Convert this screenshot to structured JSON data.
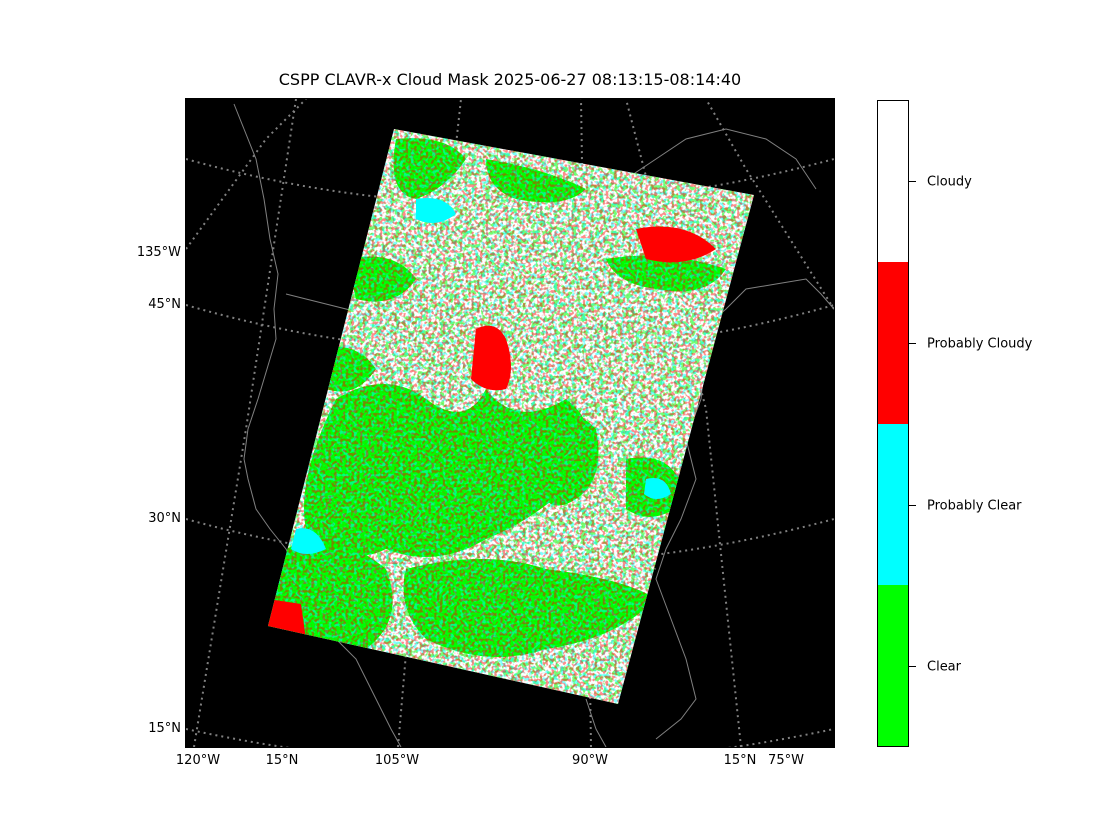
{
  "title": "CSPP CLAVR-x Cloud Mask 2025-06-27 08:13:15-08:14:40",
  "axis_labels": {
    "left": [
      "135°W",
      "45°N",
      "30°N",
      "15°N"
    ],
    "bottom": [
      "120°W",
      "15°N",
      "105°W",
      "90°W",
      "15°N",
      "75°W"
    ]
  },
  "legend": {
    "categories": [
      {
        "label": "Cloudy",
        "color": "#ffffff"
      },
      {
        "label": "Probably Cloudy",
        "color": "#ff0000"
      },
      {
        "label": "Probably Clear",
        "color": "#00ffff"
      },
      {
        "label": "Clear",
        "color": "#00ff00"
      }
    ]
  },
  "colors": {
    "map_background": "#000000",
    "coastline": "#808080",
    "graticule": "#808080"
  }
}
